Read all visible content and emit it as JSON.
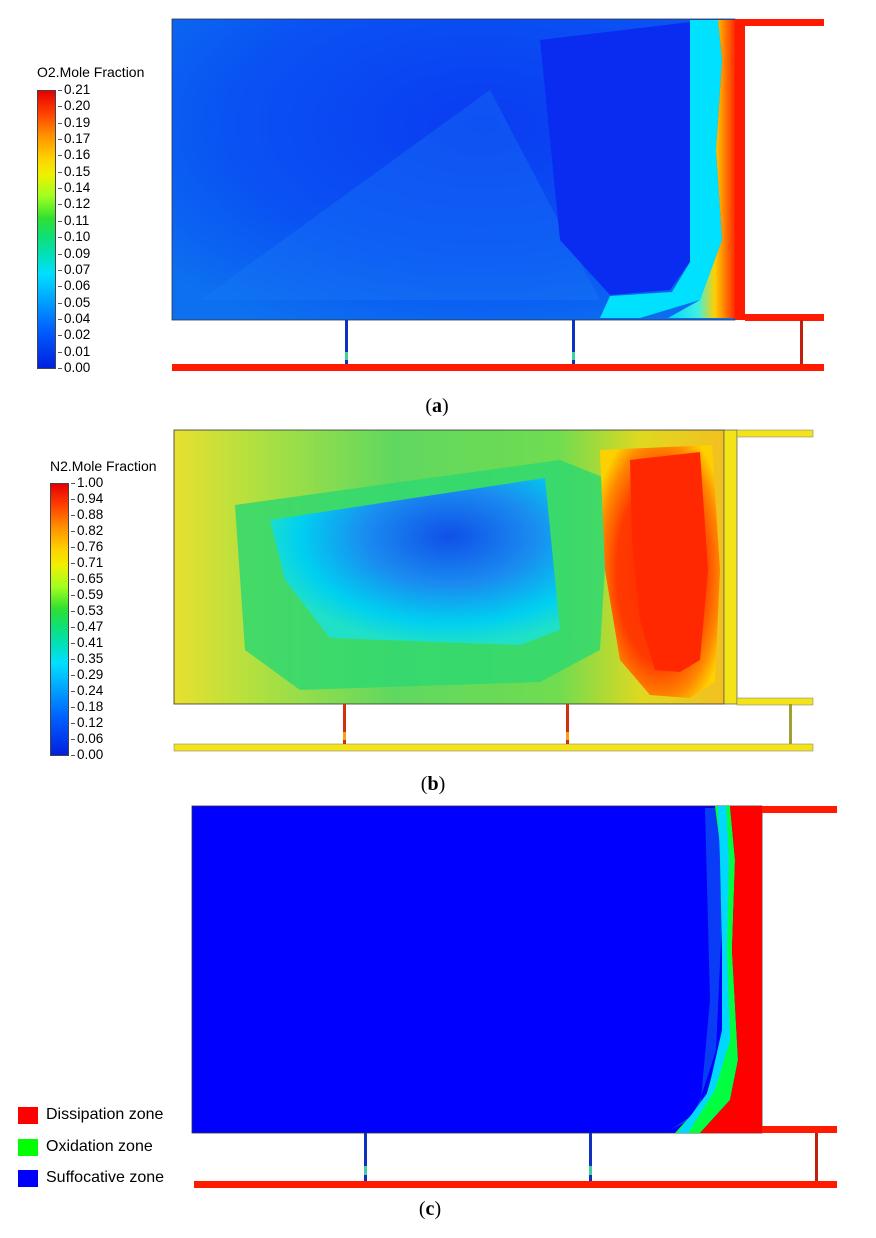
{
  "panel_a": {
    "caption_open": "(",
    "caption_letter": "a",
    "caption_close": ")",
    "colorbar": {
      "title": "O2.Mole Fraction",
      "ticks": [
        "0.21",
        "0.20",
        "0.19",
        "0.17",
        "0.16",
        "0.15",
        "0.14",
        "0.12",
        "0.11",
        "0.10",
        "0.09",
        "0.07",
        "0.06",
        "0.05",
        "0.04",
        "0.02",
        "0.01",
        "0.00"
      ]
    }
  },
  "panel_b": {
    "caption_open": "(",
    "caption_letter": "b",
    "caption_close": ")",
    "colorbar": {
      "title": "N2.Mole Fraction",
      "ticks": [
        "1.00",
        "0.94",
        "0.88",
        "0.82",
        "0.76",
        "0.71",
        "0.65",
        "0.59",
        "0.53",
        "0.47",
        "0.41",
        "0.35",
        "0.29",
        "0.24",
        "0.18",
        "0.12",
        "0.06",
        "0.00"
      ]
    }
  },
  "panel_c": {
    "caption_open": "(",
    "caption_letter": "c",
    "caption_close": ")",
    "legend": [
      {
        "label": "Dissipation zone",
        "color": "#ff0000"
      },
      {
        "label": "Oxidation zone",
        "color": "#00ff00"
      },
      {
        "label": "Suffocative zone",
        "color": "#0000ff"
      }
    ]
  },
  "colors": {
    "red": "#ff1a00",
    "blue": "#0a2cf0",
    "cyan": "#00e6ff",
    "yellow": "#f5e31a",
    "green": "#22cc33",
    "pure_blue": "#0000ff"
  }
}
